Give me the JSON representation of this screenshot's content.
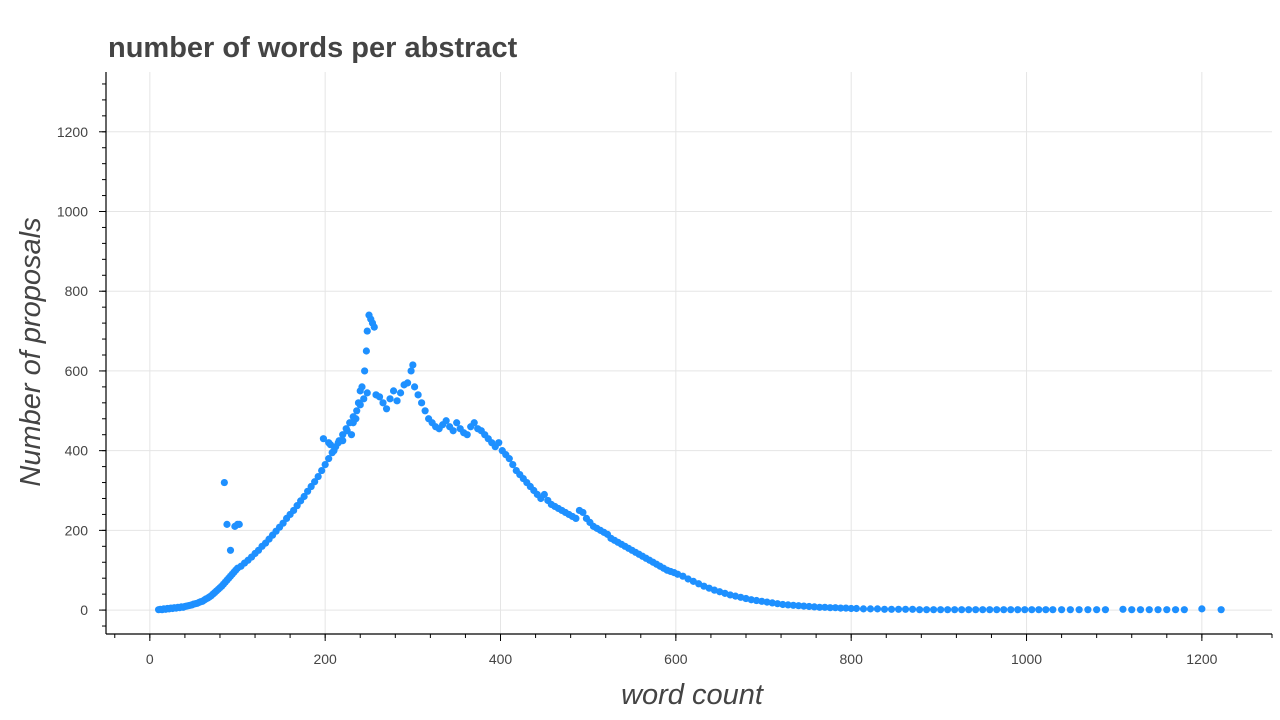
{
  "chart_data": {
    "type": "scatter",
    "title": "number of words per abstract",
    "xlabel": "word count",
    "ylabel": "Number of proposals",
    "xlim": [
      -50,
      1280
    ],
    "ylim": [
      -60,
      1350
    ],
    "xticks": [
      0,
      200,
      400,
      600,
      800,
      1000,
      1200
    ],
    "yticks": [
      0,
      200,
      400,
      600,
      800,
      1000,
      1200
    ],
    "grid": true,
    "legend": "none",
    "point_color": "#1e90ff",
    "series": [
      {
        "points": [
          [
            10,
            1
          ],
          [
            12,
            2
          ],
          [
            14,
            1
          ],
          [
            16,
            3
          ],
          [
            18,
            2
          ],
          [
            20,
            4
          ],
          [
            22,
            3
          ],
          [
            24,
            5
          ],
          [
            26,
            4
          ],
          [
            28,
            6
          ],
          [
            30,
            5
          ],
          [
            32,
            7
          ],
          [
            34,
            6
          ],
          [
            36,
            8
          ],
          [
            38,
            7
          ],
          [
            40,
            9
          ],
          [
            42,
            10
          ],
          [
            44,
            11
          ],
          [
            46,
            12
          ],
          [
            48,
            13
          ],
          [
            50,
            15
          ],
          [
            52,
            16
          ],
          [
            54,
            17
          ],
          [
            56,
            19
          ],
          [
            58,
            21
          ],
          [
            60,
            22
          ],
          [
            62,
            25
          ],
          [
            64,
            28
          ],
          [
            66,
            30
          ],
          [
            68,
            33
          ],
          [
            70,
            36
          ],
          [
            72,
            40
          ],
          [
            74,
            44
          ],
          [
            76,
            48
          ],
          [
            78,
            52
          ],
          [
            80,
            56
          ],
          [
            82,
            60
          ],
          [
            84,
            65
          ],
          [
            86,
            70
          ],
          [
            88,
            75
          ],
          [
            90,
            80
          ],
          [
            92,
            85
          ],
          [
            94,
            90
          ],
          [
            96,
            95
          ],
          [
            98,
            100
          ],
          [
            100,
            105
          ],
          [
            85,
            320
          ],
          [
            88,
            215
          ],
          [
            92,
            150
          ],
          [
            97,
            210
          ],
          [
            100,
            215
          ],
          [
            102,
            215
          ],
          [
            104,
            110
          ],
          [
            108,
            118
          ],
          [
            112,
            125
          ],
          [
            116,
            133
          ],
          [
            120,
            142
          ],
          [
            124,
            150
          ],
          [
            128,
            160
          ],
          [
            132,
            168
          ],
          [
            136,
            178
          ],
          [
            140,
            188
          ],
          [
            144,
            198
          ],
          [
            148,
            208
          ],
          [
            152,
            218
          ],
          [
            156,
            230
          ],
          [
            160,
            240
          ],
          [
            164,
            250
          ],
          [
            168,
            262
          ],
          [
            172,
            274
          ],
          [
            176,
            285
          ],
          [
            180,
            298
          ],
          [
            184,
            310
          ],
          [
            188,
            322
          ],
          [
            192,
            335
          ],
          [
            196,
            350
          ],
          [
            200,
            365
          ],
          [
            204,
            380
          ],
          [
            208,
            395
          ],
          [
            212,
            410
          ],
          [
            216,
            425
          ],
          [
            220,
            440
          ],
          [
            224,
            455
          ],
          [
            228,
            470
          ],
          [
            232,
            485
          ],
          [
            236,
            500
          ],
          [
            240,
            515
          ],
          [
            244,
            530
          ],
          [
            248,
            545
          ],
          [
            198,
            430
          ],
          [
            204,
            420
          ],
          [
            206,
            415
          ],
          [
            210,
            400
          ],
          [
            215,
            420
          ],
          [
            220,
            425
          ],
          [
            225,
            450
          ],
          [
            230,
            440
          ],
          [
            232,
            470
          ],
          [
            235,
            480
          ],
          [
            238,
            520
          ],
          [
            240,
            550
          ],
          [
            242,
            560
          ],
          [
            245,
            600
          ],
          [
            247,
            650
          ],
          [
            248,
            700
          ],
          [
            250,
            740
          ],
          [
            252,
            730
          ],
          [
            254,
            720
          ],
          [
            256,
            710
          ],
          [
            258,
            540
          ],
          [
            262,
            535
          ],
          [
            266,
            520
          ],
          [
            270,
            505
          ],
          [
            274,
            530
          ],
          [
            278,
            550
          ],
          [
            282,
            525
          ],
          [
            286,
            545
          ],
          [
            290,
            565
          ],
          [
            294,
            570
          ],
          [
            298,
            600
          ],
          [
            300,
            615
          ],
          [
            302,
            560
          ],
          [
            306,
            540
          ],
          [
            310,
            520
          ],
          [
            314,
            500
          ],
          [
            318,
            480
          ],
          [
            322,
            470
          ],
          [
            326,
            460
          ],
          [
            330,
            455
          ],
          [
            334,
            465
          ],
          [
            338,
            475
          ],
          [
            342,
            460
          ],
          [
            346,
            450
          ],
          [
            350,
            470
          ],
          [
            354,
            455
          ],
          [
            358,
            445
          ],
          [
            362,
            440
          ],
          [
            366,
            460
          ],
          [
            370,
            470
          ],
          [
            374,
            455
          ],
          [
            378,
            450
          ],
          [
            382,
            440
          ],
          [
            386,
            430
          ],
          [
            390,
            420
          ],
          [
            394,
            410
          ],
          [
            398,
            420
          ],
          [
            402,
            400
          ],
          [
            406,
            390
          ],
          [
            410,
            380
          ],
          [
            414,
            365
          ],
          [
            418,
            350
          ],
          [
            422,
            340
          ],
          [
            426,
            330
          ],
          [
            430,
            320
          ],
          [
            434,
            310
          ],
          [
            438,
            300
          ],
          [
            442,
            290
          ],
          [
            446,
            280
          ],
          [
            450,
            290
          ],
          [
            454,
            275
          ],
          [
            458,
            265
          ],
          [
            462,
            260
          ],
          [
            466,
            255
          ],
          [
            470,
            250
          ],
          [
            474,
            245
          ],
          [
            478,
            240
          ],
          [
            482,
            235
          ],
          [
            486,
            230
          ],
          [
            490,
            250
          ],
          [
            494,
            245
          ],
          [
            498,
            230
          ],
          [
            502,
            220
          ],
          [
            506,
            210
          ],
          [
            510,
            205
          ],
          [
            514,
            200
          ],
          [
            518,
            195
          ],
          [
            522,
            190
          ],
          [
            526,
            180
          ],
          [
            530,
            175
          ],
          [
            534,
            170
          ],
          [
            538,
            165
          ],
          [
            542,
            160
          ],
          [
            546,
            155
          ],
          [
            550,
            150
          ],
          [
            554,
            145
          ],
          [
            558,
            140
          ],
          [
            562,
            135
          ],
          [
            566,
            130
          ],
          [
            570,
            125
          ],
          [
            574,
            120
          ],
          [
            578,
            115
          ],
          [
            582,
            110
          ],
          [
            586,
            105
          ],
          [
            590,
            100
          ],
          [
            594,
            97
          ],
          [
            598,
            94
          ],
          [
            602,
            90
          ],
          [
            608,
            85
          ],
          [
            614,
            78
          ],
          [
            620,
            72
          ],
          [
            626,
            66
          ],
          [
            632,
            60
          ],
          [
            638,
            55
          ],
          [
            644,
            50
          ],
          [
            650,
            46
          ],
          [
            656,
            42
          ],
          [
            662,
            38
          ],
          [
            668,
            35
          ],
          [
            674,
            32
          ],
          [
            680,
            29
          ],
          [
            686,
            26
          ],
          [
            692,
            24
          ],
          [
            698,
            22
          ],
          [
            704,
            20
          ],
          [
            710,
            18
          ],
          [
            716,
            16
          ],
          [
            722,
            14
          ],
          [
            728,
            13
          ],
          [
            734,
            12
          ],
          [
            740,
            11
          ],
          [
            746,
            10
          ],
          [
            752,
            9
          ],
          [
            758,
            8
          ],
          [
            764,
            7
          ],
          [
            770,
            7
          ],
          [
            776,
            6
          ],
          [
            782,
            6
          ],
          [
            788,
            5
          ],
          [
            794,
            5
          ],
          [
            800,
            4
          ],
          [
            806,
            4
          ],
          [
            814,
            3
          ],
          [
            822,
            3
          ],
          [
            830,
            3
          ],
          [
            838,
            2
          ],
          [
            846,
            2
          ],
          [
            854,
            2
          ],
          [
            862,
            2
          ],
          [
            870,
            2
          ],
          [
            878,
            1
          ],
          [
            886,
            1
          ],
          [
            894,
            1
          ],
          [
            902,
            1
          ],
          [
            910,
            1
          ],
          [
            918,
            1
          ],
          [
            926,
            1
          ],
          [
            934,
            1
          ],
          [
            942,
            1
          ],
          [
            950,
            1
          ],
          [
            958,
            1
          ],
          [
            966,
            1
          ],
          [
            974,
            1
          ],
          [
            982,
            1
          ],
          [
            990,
            1
          ],
          [
            998,
            1
          ],
          [
            1006,
            1
          ],
          [
            1014,
            1
          ],
          [
            1022,
            1
          ],
          [
            1030,
            1
          ],
          [
            1040,
            1
          ],
          [
            1050,
            1
          ],
          [
            1060,
            1
          ],
          [
            1070,
            1
          ],
          [
            1080,
            1
          ],
          [
            1090,
            1
          ],
          [
            1110,
            2
          ],
          [
            1120,
            1
          ],
          [
            1130,
            1
          ],
          [
            1140,
            1
          ],
          [
            1150,
            1
          ],
          [
            1160,
            1
          ],
          [
            1170,
            1
          ],
          [
            1180,
            1
          ],
          [
            1200,
            3
          ],
          [
            1222,
            1
          ]
        ]
      }
    ]
  }
}
